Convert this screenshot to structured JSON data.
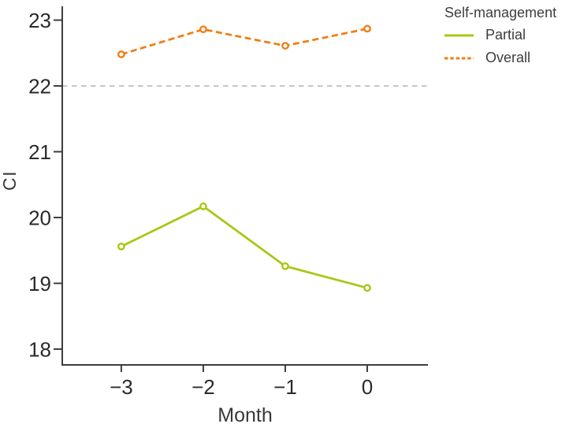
{
  "chart_data": {
    "type": "line",
    "title": "",
    "xlabel": "Month",
    "ylabel": "CI",
    "x": [
      -3,
      -2,
      -1,
      0
    ],
    "x_tick_labels": [
      "−3",
      "−2",
      "−1",
      "0"
    ],
    "y_ticks": [
      18,
      19,
      20,
      21,
      22,
      23
    ],
    "xlim": [
      -3.72,
      0.74
    ],
    "ylim": [
      17.76,
      23.21
    ],
    "grid": false,
    "reference_line": {
      "y": 22,
      "color": "#b9b9b9",
      "style": "dashed"
    },
    "legend": {
      "title": "Self-management",
      "position": "top-right"
    },
    "series": [
      {
        "name": "Partial",
        "style": "solid",
        "marker": "open-circle",
        "color": "#a8c717",
        "values": [
          19.56,
          20.17,
          19.26,
          18.93
        ]
      },
      {
        "name": "Overall",
        "style": "dashed",
        "marker": "open-circle",
        "color": "#f07f16",
        "values": [
          22.48,
          22.86,
          22.61,
          22.87
        ]
      }
    ]
  }
}
